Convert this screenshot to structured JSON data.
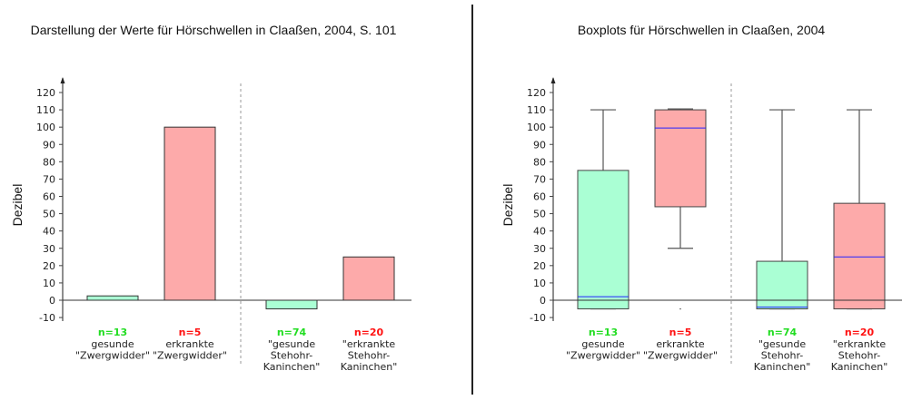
{
  "chart_data": [
    {
      "type": "bar",
      "title": "Darstellung der Werte für Hörschwellen  in Claaßen, 2004, S. 101",
      "ylabel": "Dezibel",
      "ylim": [
        -10,
        120
      ],
      "yticks": [
        120,
        110,
        100,
        90,
        80,
        70,
        60,
        50,
        40,
        30,
        20,
        10,
        0,
        -10
      ],
      "categories": [
        {
          "n": "n=13",
          "lines": [
            "gesunde",
            "\"Zwergwidder\""
          ],
          "status": "healthy"
        },
        {
          "n": "n=5",
          "lines": [
            "erkrankte",
            "\"Zwergwidder\""
          ],
          "status": "sick"
        },
        {
          "n": "n=74",
          "lines": [
            "\"gesunde",
            "Stehohr-",
            "Kaninchen\""
          ],
          "status": "healthy"
        },
        {
          "n": "n=20",
          "lines": [
            "\"erkrankte",
            "Stehohr-",
            "Kaninchen\""
          ],
          "status": "sick"
        }
      ],
      "values": [
        2.5,
        100,
        -5,
        25
      ]
    },
    {
      "type": "boxplot",
      "title": "Boxplots für Hörschwellen  in Claaßen, 2004",
      "ylabel": "Dezibel",
      "ylim": [
        -10,
        120
      ],
      "yticks": [
        120,
        110,
        100,
        90,
        80,
        70,
        60,
        50,
        40,
        30,
        20,
        10,
        0,
        -10
      ],
      "categories": [
        {
          "n": "n=13",
          "lines": [
            "gesunde",
            "\"Zwergwidder\""
          ],
          "status": "healthy"
        },
        {
          "n": "n=5",
          "lines": [
            "erkrankte",
            "\"Zwergwidder\""
          ],
          "status": "sick"
        },
        {
          "n": "n=74",
          "lines": [
            "\"gesunde",
            "Stehohr-",
            "Kaninchen\""
          ],
          "status": "healthy"
        },
        {
          "n": "n=20",
          "lines": [
            "\"erkrankte",
            "Stehohr-",
            "Kaninchen\""
          ],
          "status": "sick"
        }
      ],
      "boxes": [
        {
          "min": -5,
          "q1": -5,
          "median": 2,
          "q3": 75,
          "max": 110
        },
        {
          "min": 30,
          "q1": 54,
          "median": 99.5,
          "q3": 110,
          "max": 110.5,
          "outliers": [
            -5
          ]
        },
        {
          "min": -5,
          "q1": -5,
          "median": -4,
          "q3": 22.5,
          "max": 110
        },
        {
          "min": -5,
          "q1": -5,
          "median": 25,
          "q3": 56,
          "max": 110
        }
      ]
    }
  ],
  "colors": {
    "healthy_fill": "#aaffd4",
    "sick_fill": "#fdaaaa",
    "healthy_text": "#22dd22",
    "sick_text": "#ff1111",
    "median": "#2222ff"
  }
}
